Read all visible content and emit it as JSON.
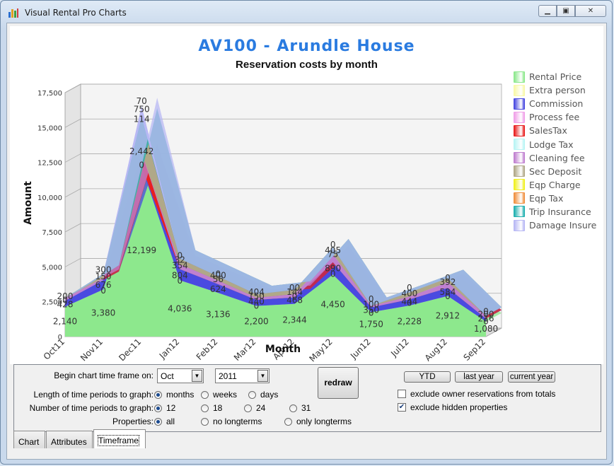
{
  "window": {
    "title": "Visual Rental Pro Charts",
    "min": "▭",
    "max": "▣",
    "close": "✕"
  },
  "chart": {
    "title": "AV100 - Arundle House",
    "subtitle": "Reservation costs by month"
  },
  "chart_data": {
    "type": "area",
    "stacked": true,
    "title": "AV100 - Arundle House",
    "subtitle": "Reservation costs by month",
    "xlabel": "Month",
    "ylabel": "Amount",
    "ylim": [
      0,
      17500
    ],
    "yticks": [
      "0",
      "2,500",
      "5,000",
      "7,500",
      "10,000",
      "12,500",
      "15,000",
      "17,500"
    ],
    "categories": [
      "Oct11",
      "Nov11",
      "Dec11",
      "Jan12",
      "Feb12",
      "Mar12",
      "Apr12",
      "May12",
      "Jun12",
      "Jul12",
      "Aug12",
      "Sep12"
    ],
    "series": [
      {
        "name": "Rental Price",
        "color": "#8de88d",
        "values": [
          2140,
          3380,
          12199,
          4036,
          3136,
          2200,
          2344,
          4450,
          1750,
          2228,
          2912,
          1080
        ]
      },
      {
        "name": "Extra person",
        "color": "#f8f8a8",
        "values": [
          0,
          0,
          0,
          0,
          0,
          0,
          0,
          0,
          0,
          0,
          0,
          0
        ]
      },
      {
        "name": "Commission",
        "color": "#4a4ae0",
        "values": [
          428,
          676,
          0,
          804,
          624,
          440,
          468,
          890,
          350,
          444,
          584,
          216
        ]
      },
      {
        "name": "Process fee",
        "color": "#f0a0e8",
        "values": [
          0,
          0,
          0,
          0,
          0,
          0,
          0,
          0,
          0,
          0,
          0,
          0
        ]
      },
      {
        "name": "SalesTax",
        "color": "#e82020",
        "values": [
          0,
          0,
          1020,
          0,
          0,
          0,
          0,
          0,
          0,
          0,
          0,
          0
        ]
      },
      {
        "name": "Lodge Tax",
        "color": "#b8f4f4",
        "values": [
          0,
          0,
          0,
          0,
          0,
          0,
          0,
          0,
          0,
          0,
          0,
          0
        ]
      },
      {
        "name": "Cleaning fee",
        "color": "#c080d0",
        "values": [
          200,
          150,
          0,
          354,
          256,
          150,
          240,
          575,
          100,
          200,
          392,
          200
        ]
      },
      {
        "name": "Sec Deposit",
        "color": "#b0a888",
        "values": [
          0,
          300,
          2442,
          390,
          300,
          250,
          300,
          475,
          0,
          300,
          300,
          0
        ]
      },
      {
        "name": "Eqp Charge",
        "color": "#f0f020",
        "values": [
          0,
          0,
          0,
          0,
          0,
          0,
          0,
          0,
          0,
          0,
          0,
          0
        ]
      },
      {
        "name": "Eqp Tax",
        "color": "#f09040",
        "values": [
          0,
          0,
          0,
          0,
          0,
          0,
          0,
          0,
          0,
          0,
          0,
          0
        ]
      },
      {
        "name": "Trip Insurance",
        "color": "#20b0b0",
        "values": [
          0,
          0,
          114,
          0,
          0,
          0,
          0,
          0,
          0,
          0,
          0,
          0
        ]
      },
      {
        "name": "Damage Insure",
        "color": "#b8b8f4",
        "values": [
          0,
          0,
          750,
          0,
          0,
          0,
          0,
          0,
          0,
          0,
          0,
          0
        ]
      }
    ],
    "labels": [
      {
        "cat": 0,
        "text": "2,140",
        "v": 1100
      },
      {
        "cat": 0,
        "text": "428",
        "v": 2300
      },
      {
        "cat": 0,
        "text": "200",
        "v": 2900
      },
      {
        "cat": 0,
        "text": "0",
        "v": 2600
      },
      {
        "cat": 1,
        "text": "3,380",
        "v": 1700
      },
      {
        "cat": 1,
        "text": "676",
        "v": 3700
      },
      {
        "cat": 1,
        "text": "150",
        "v": 4300
      },
      {
        "cat": 1,
        "text": "300",
        "v": 4800
      },
      {
        "cat": 1,
        "text": "0",
        "v": 3300
      },
      {
        "cat": 2,
        "text": "12,199",
        "v": 6200
      },
      {
        "cat": 2,
        "text": "0",
        "v": 12300
      },
      {
        "cat": 2,
        "text": "2,442",
        "v": 13300
      },
      {
        "cat": 2,
        "text": "114",
        "v": 15600
      },
      {
        "cat": 2,
        "text": "750",
        "v": 16300
      },
      {
        "cat": 2,
        "text": "70",
        "v": 16900
      },
      {
        "cat": 3,
        "text": "4,036",
        "v": 2000
      },
      {
        "cat": 3,
        "text": "804",
        "v": 4400
      },
      {
        "cat": 3,
        "text": "0",
        "v": 4000
      },
      {
        "cat": 3,
        "text": "354",
        "v": 5100
      },
      {
        "cat": 3,
        "text": "0",
        "v": 5800
      },
      {
        "cat": 3,
        "text": "32",
        "v": 5500
      },
      {
        "cat": 4,
        "text": "3,136",
        "v": 1600
      },
      {
        "cat": 4,
        "text": "624",
        "v": 3400
      },
      {
        "cat": 4,
        "text": "56",
        "v": 4100
      },
      {
        "cat": 4,
        "text": "400",
        "v": 4400
      },
      {
        "cat": 4,
        "text": "0",
        "v": 4500
      },
      {
        "cat": 5,
        "text": "2,200",
        "v": 1100
      },
      {
        "cat": 5,
        "text": "440",
        "v": 2500
      },
      {
        "cat": 5,
        "text": "0",
        "v": 2200
      },
      {
        "cat": 5,
        "text": "150",
        "v": 2900
      },
      {
        "cat": 5,
        "text": "404",
        "v": 3200
      },
      {
        "cat": 6,
        "text": "2,344",
        "v": 1200
      },
      {
        "cat": 6,
        "text": "468",
        "v": 2600
      },
      {
        "cat": 6,
        "text": "0",
        "v": 2900
      },
      {
        "cat": 6,
        "text": "144",
        "v": 3200
      },
      {
        "cat": 6,
        "text": "00",
        "v": 3500
      },
      {
        "cat": 7,
        "text": "4,450",
        "v": 2300
      },
      {
        "cat": 7,
        "text": "890",
        "v": 4900
      },
      {
        "cat": 7,
        "text": "0",
        "v": 4500
      },
      {
        "cat": 7,
        "text": "75",
        "v": 5900
      },
      {
        "cat": 7,
        "text": "405",
        "v": 6200
      },
      {
        "cat": 7,
        "text": "0",
        "v": 6600
      },
      {
        "cat": 8,
        "text": "1,750",
        "v": 900
      },
      {
        "cat": 8,
        "text": "350",
        "v": 1900
      },
      {
        "cat": 8,
        "text": "0",
        "v": 1700
      },
      {
        "cat": 8,
        "text": "100",
        "v": 2300
      },
      {
        "cat": 8,
        "text": "0",
        "v": 2700
      },
      {
        "cat": 9,
        "text": "2,228",
        "v": 1100
      },
      {
        "cat": 9,
        "text": "444",
        "v": 2500
      },
      {
        "cat": 9,
        "text": "0",
        "v": 2400
      },
      {
        "cat": 9,
        "text": "400",
        "v": 3100
      },
      {
        "cat": 9,
        "text": "0",
        "v": 3500
      },
      {
        "cat": 10,
        "text": "2,912",
        "v": 1500
      },
      {
        "cat": 10,
        "text": "584",
        "v": 3200
      },
      {
        "cat": 10,
        "text": "0",
        "v": 2900
      },
      {
        "cat": 10,
        "text": "392",
        "v": 3900
      },
      {
        "cat": 10,
        "text": "0",
        "v": 4200
      },
      {
        "cat": 11,
        "text": "1,080",
        "v": 550
      },
      {
        "cat": 11,
        "text": "216",
        "v": 1300
      },
      {
        "cat": 11,
        "text": "0",
        "v": 1100
      },
      {
        "cat": 11,
        "text": "200",
        "v": 1600
      },
      {
        "cat": 11,
        "text": "0",
        "v": 1800
      }
    ],
    "legend_position": "right",
    "grid": true
  },
  "controls": {
    "begin_label": "Begin chart time frame on:",
    "month_value": "Oct",
    "year_value": "2011",
    "length_label": "Length of time periods to graph:",
    "length_options": [
      "months",
      "weeks",
      "days"
    ],
    "length_selected": "months",
    "number_label": "Number of time periods to graph:",
    "number_options": [
      "12",
      "18",
      "24",
      "31"
    ],
    "number_selected": "12",
    "properties_label": "Properties:",
    "properties_options": [
      "all",
      "no longterms",
      "only longterms"
    ],
    "properties_selected": "all",
    "redraw": "redraw",
    "ytd": "YTD",
    "last_year": "last year",
    "current_year": "current year",
    "exclude_owner": "exclude owner reservations from totals",
    "exclude_owner_checked": false,
    "exclude_hidden": "exclude hidden properties",
    "exclude_hidden_checked": true
  },
  "tabs": [
    {
      "label": "Chart"
    },
    {
      "label": "Attributes"
    },
    {
      "label": "Timeframe",
      "active": true
    }
  ]
}
